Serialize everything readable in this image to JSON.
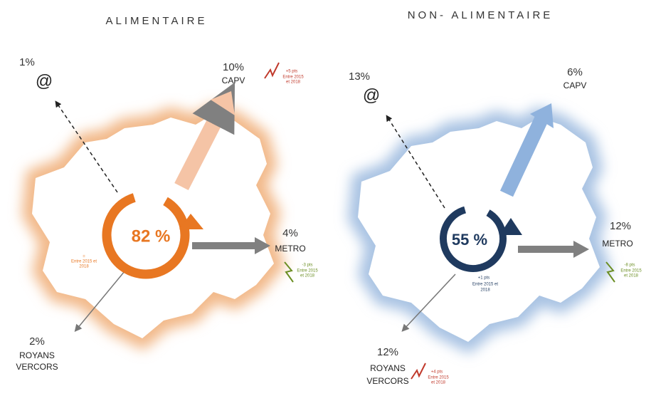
{
  "panels": [
    {
      "title": "ALIMENTAIRE",
      "center": "82 %",
      "center_trend": "=",
      "center_note": [
        "Entre 2015 et",
        "2018"
      ],
      "online": {
        "value": "1%",
        "label": "@"
      },
      "capv": {
        "value": "10%",
        "label": "CAPV",
        "trend": "+5 pts",
        "note": [
          "Entre 2015",
          "et 2018"
        ]
      },
      "metro": {
        "value": "4%",
        "label": "METRO",
        "trend": "-3 pts",
        "note": [
          "Entre 2015",
          "et 2018"
        ]
      },
      "royans": {
        "value": "2%",
        "label": [
          "ROYANS",
          "VERCORS"
        ]
      }
    },
    {
      "title": "NON- ALIMENTAIRE",
      "center": "55 %",
      "center_trend": "+1 pts",
      "center_note": [
        "Entre 2015 et",
        "2018"
      ],
      "online": {
        "value": "13%",
        "label": "@"
      },
      "capv": {
        "value": "6%",
        "label": "CAPV"
      },
      "metro": {
        "value": "12%",
        "label": "METRO",
        "trend": "-8 pts",
        "note": [
          "Entre 2015",
          "et 2018"
        ]
      },
      "royans": {
        "value": "12%",
        "label": [
          "ROYANS",
          "VERCORS"
        ],
        "trend": "+4 pts",
        "note": [
          "Entre 2015",
          "et 2018"
        ]
      }
    }
  ]
}
